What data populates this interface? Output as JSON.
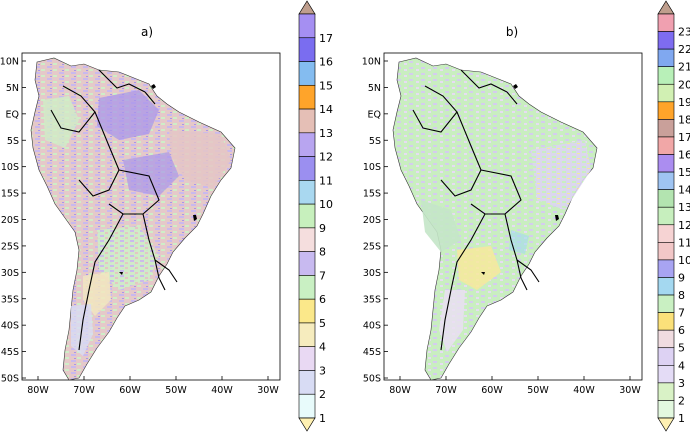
{
  "panels": [
    {
      "title": "a)",
      "lat_labels": [
        "10N",
        "5N",
        "EQ",
        "5S",
        "10S",
        "15S",
        "20S",
        "25S",
        "30S",
        "35S",
        "40S",
        "45S",
        "50S"
      ],
      "lon_labels": [
        "80W",
        "70W",
        "60W",
        "50W",
        "40W",
        "30W"
      ],
      "colorbar": {
        "labels": [
          "1",
          "2",
          "3",
          "4",
          "5",
          "6",
          "7",
          "8",
          "9",
          "10",
          "11",
          "12",
          "13",
          "14",
          "15",
          "16",
          "17"
        ],
        "colors": [
          "#e8fbfb",
          "#d8dcf4",
          "#e9d9f3",
          "#f6ecbe",
          "#fbe88a",
          "#c9f0c3",
          "#c8baf0",
          "#f5dede",
          "#c7f0bd",
          "#a9d8f0",
          "#9b8ff0",
          "#b8a5f0",
          "#e5bfb6",
          "#ffa42a",
          "#84bcf0",
          "#7a6df0",
          "#a58ff2"
        ],
        "over_color": "#bf9e8d",
        "under_color": "#fff1b2"
      },
      "dominant_colors": [
        "#e5c5c5",
        "#c8b8ee",
        "#cfeec7",
        "#a995ea",
        "#f2e6c0"
      ]
    },
    {
      "title": "b)",
      "lat_labels": [
        "10N",
        "5N",
        "EQ",
        "5S",
        "10S",
        "15S",
        "20S",
        "25S",
        "30S",
        "35S",
        "40S",
        "45S",
        "50S"
      ],
      "lon_labels": [
        "80W",
        "70W",
        "60W",
        "50W",
        "40W",
        "30W"
      ],
      "colorbar": {
        "labels": [
          "1",
          "2",
          "3",
          "4",
          "5",
          "6",
          "7",
          "8",
          "9",
          "10",
          "11",
          "12",
          "13",
          "14",
          "15",
          "16",
          "17",
          "18",
          "19",
          "20",
          "21",
          "22",
          "23"
        ],
        "colors": [
          "#e3f8df",
          "#d9f2c6",
          "#e4dcf6",
          "#ddd2f3",
          "#f0dce0",
          "#fbe17a",
          "#c9f0c2",
          "#a4d8f0",
          "#a8a4f2",
          "#f2c7c7",
          "#f6d3d3",
          "#c7efbe",
          "#b3e4b0",
          "#9fc4f2",
          "#ab8df0",
          "#f1a7a7",
          "#c9a09a",
          "#ffa42a",
          "#d1f0b3",
          "#b8f0b8",
          "#80a8f0",
          "#7e6cf0",
          "#f0a0b0"
        ],
        "over_color": "#bf9e8d",
        "under_color": "#fff1b2"
      },
      "dominant_colors": [
        "#c9eec0",
        "#d4ccef",
        "#eadff2",
        "#f7e99b",
        "#c4e6c8"
      ]
    }
  ]
}
